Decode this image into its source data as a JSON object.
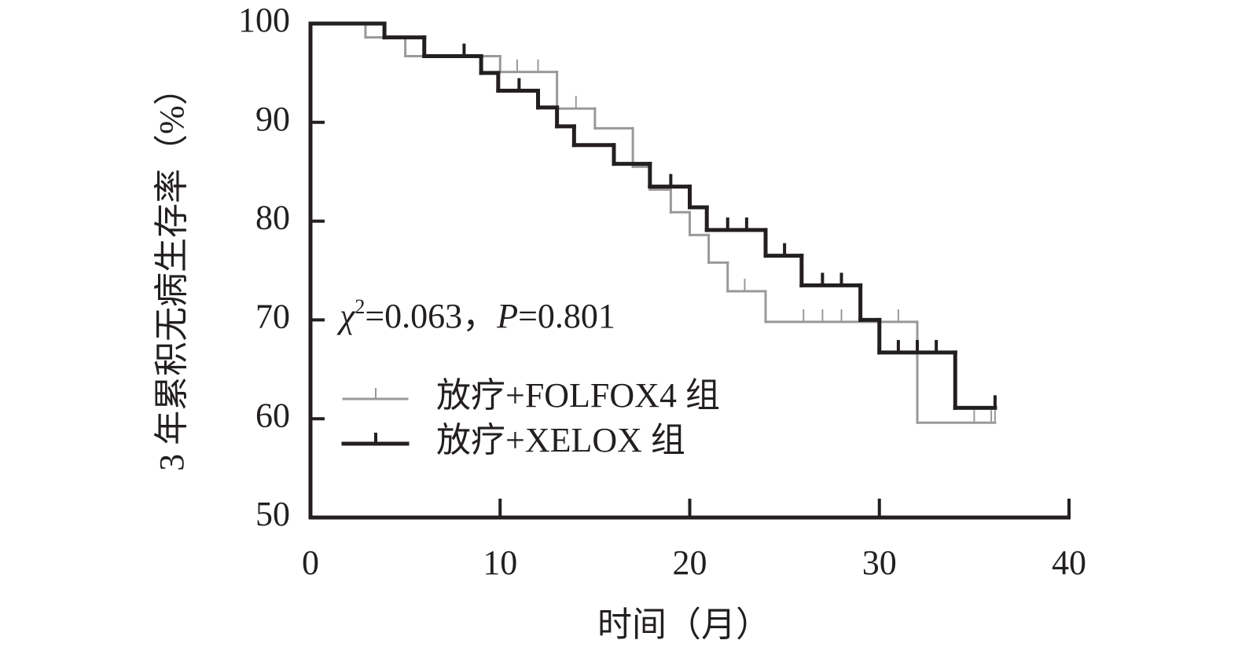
{
  "chart_data": {
    "type": "step",
    "xlabel": "时间（月）",
    "ylabel": "3 年累积无病生存率（%）",
    "annotation": [
      "χ",
      "2",
      "=0.063，",
      "P",
      "=0.801"
    ],
    "xlim": [
      0,
      40
    ],
    "xticks": [
      0,
      10,
      20,
      30,
      40
    ],
    "ylim": [
      50,
      100
    ],
    "yticks": [
      50,
      60,
      70,
      80,
      90,
      100
    ],
    "legend": "center-left",
    "series": [
      {
        "name": "放疗+FOLFOX4 组",
        "color": "#999999",
        "width": 3,
        "x": [
          0,
          2.9,
          5.0,
          10.0,
          13.0,
          15.0,
          17.0,
          17.9,
          19.0,
          20.0,
          21.0,
          22.0,
          24.0,
          32.0
        ],
        "values": [
          100,
          98.6,
          96.7,
          95.1,
          91.4,
          89.4,
          85.5,
          83.2,
          80.9,
          78.6,
          75.8,
          72.9,
          69.8,
          59.6
        ],
        "censored": [
          10.9,
          12.0,
          14.0,
          22.9,
          26.0,
          27.0,
          28.0,
          31.0,
          35.0,
          35.9,
          36.1
        ]
      },
      {
        "name": "放疗+XELOX 组",
        "color": "#231f20",
        "width": 5,
        "x": [
          0,
          3.9,
          6.0,
          9.0,
          9.9,
          12.0,
          13.0,
          13.9,
          16.0,
          17.9,
          20.0,
          20.9,
          24.0,
          25.9,
          29.0,
          30.0,
          34.0
        ],
        "values": [
          100,
          98.6,
          96.7,
          95.0,
          93.2,
          91.5,
          89.6,
          87.7,
          85.8,
          83.5,
          81.4,
          79.1,
          76.5,
          73.5,
          70.0,
          66.7,
          61.1
        ],
        "censored": [
          8.1,
          11.0,
          19.0,
          22.0,
          23.0,
          25.0,
          27.0,
          28.0,
          31.0,
          32.0,
          33.0,
          36.1
        ]
      }
    ]
  }
}
